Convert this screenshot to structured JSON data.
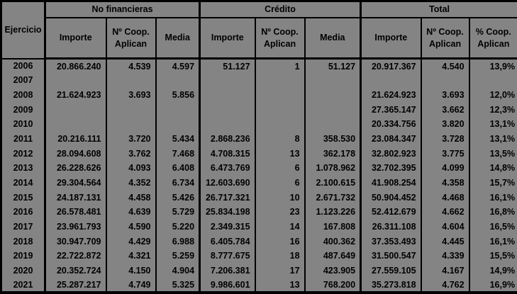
{
  "colors": {
    "background": "#848484",
    "border": "#000000",
    "text": "#000000"
  },
  "table": {
    "corner_header": "Ejercicio",
    "groups": [
      {
        "label": "No financieras"
      },
      {
        "label": "Crédito"
      },
      {
        "label": "Total"
      }
    ],
    "sub_headers": {
      "nf_importe": "Importe",
      "nf_ncoop": "Nº Coop. Aplican",
      "nf_media": "Media",
      "cr_importe": "Importe",
      "cr_ncoop": "Nº Coop. Aplican",
      "cr_media": "Media",
      "t_importe": "Importe",
      "t_ncoop": "Nº Coop. Aplican",
      "t_pctcoop": "% Coop. Aplican"
    },
    "column_keys": [
      "year",
      "nf-importe",
      "nf-ncoop-aplican",
      "nf-media",
      "credito-importe",
      "credito-ncoop-aplican",
      "credito-media",
      "total-importe",
      "total-ncoop-aplican",
      "total-pct-coop-aplican"
    ],
    "rows": [
      [
        "2006",
        "20.866.240",
        "4.539",
        "4.597",
        "51.127",
        "1",
        "51.127",
        "20.917.367",
        "4.540",
        "13,9%"
      ],
      [
        "2007",
        "",
        "",
        "",
        "",
        "",
        "",
        "",
        "",
        ""
      ],
      [
        "2008",
        "21.624.923",
        "3.693",
        "5.856",
        "",
        "",
        "",
        "21.624.923",
        "3.693",
        "12,0%"
      ],
      [
        "2009",
        "",
        "",
        "",
        "",
        "",
        "",
        "27.365.147",
        "3.662",
        "12,3%"
      ],
      [
        "2010",
        "",
        "",
        "",
        "",
        "",
        "",
        "20.334.756",
        "3.820",
        "13,1%"
      ],
      [
        "2011",
        "20.216.111",
        "3.720",
        "5.434",
        "2.868.236",
        "8",
        "358.530",
        "23.084.347",
        "3.728",
        "13,1%"
      ],
      [
        "2012",
        "28.094.608",
        "3.762",
        "7.468",
        "4.708.315",
        "13",
        "362.178",
        "32.802.923",
        "3.775",
        "13,5%"
      ],
      [
        "2013",
        "26.228.626",
        "4.093",
        "6.408",
        "6.473.769",
        "6",
        "1.078.962",
        "32.702.395",
        "4.099",
        "14,8%"
      ],
      [
        "2014",
        "29.304.564",
        "4.352",
        "6.734",
        "12.603.690",
        "6",
        "2.100.615",
        "41.908.254",
        "4.358",
        "15,7%"
      ],
      [
        "2015",
        "24.187.131",
        "4.458",
        "5.426",
        "26.717.321",
        "10",
        "2.671.732",
        "50.904.452",
        "4.468",
        "16,1%"
      ],
      [
        "2016",
        "26.578.481",
        "4.639",
        "5.729",
        "25.834.198",
        "23",
        "1.123.226",
        "52.412.679",
        "4.662",
        "16,8%"
      ],
      [
        "2017",
        "23.961.793",
        "4.590",
        "5.220",
        "2.349.315",
        "14",
        "167.808",
        "26.311.108",
        "4.604",
        "16,5%"
      ],
      [
        "2018",
        "30.947.709",
        "4.429",
        "6.988",
        "6.405.784",
        "16",
        "400.362",
        "37.353.493",
        "4.445",
        "16,1%"
      ],
      [
        "2019",
        "22.722.872",
        "4.321",
        "5.259",
        "8.777.675",
        "18",
        "487.649",
        "31.500.547",
        "4.339",
        "15,5%"
      ],
      [
        "2020",
        "20.352.724",
        "4.150",
        "4.904",
        "7.206.381",
        "17",
        "423.905",
        "27.559.105",
        "4.167",
        "14,9%"
      ],
      [
        "2021",
        "25.287.217",
        "4.749",
        "5.325",
        "9.986.601",
        "13",
        "768.200",
        "35.273.818",
        "4.762",
        "16,9%"
      ]
    ]
  }
}
